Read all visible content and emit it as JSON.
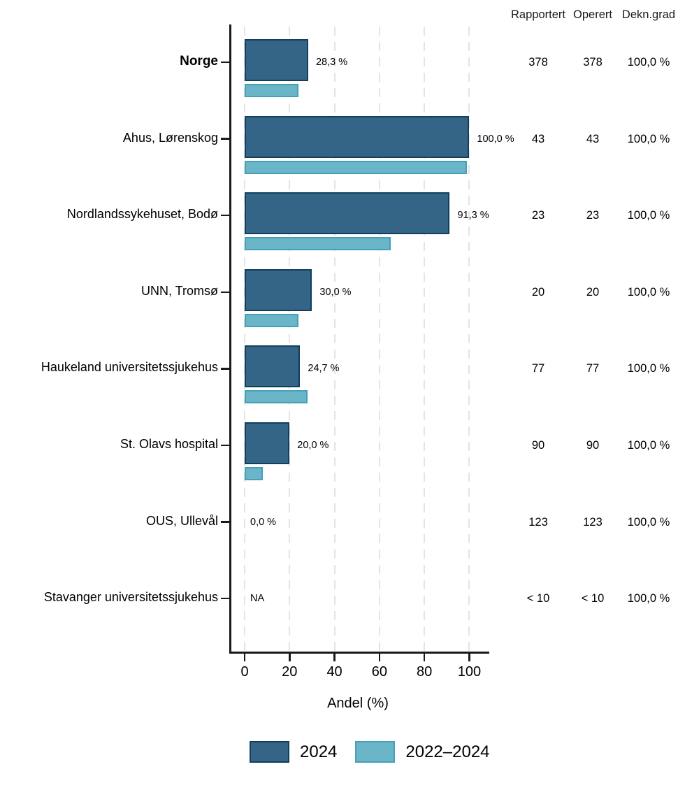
{
  "table": {
    "headers": [
      "Rapportert",
      "Operert",
      "Dekn.grad"
    ]
  },
  "axis": {
    "ticks": [
      0,
      20,
      40,
      60,
      80,
      100
    ],
    "xlabel": "Andel (%)"
  },
  "legend": {
    "items": [
      {
        "label": "2024",
        "fill": "#356586",
        "border": "#123f5e"
      },
      {
        "label": "2022–2024",
        "fill": "#6ab5c8",
        "border": "#45a1b8"
      }
    ]
  },
  "colors": {
    "bar_2024_fill": "#356586",
    "bar_2024_border": "#123f5e",
    "bar_2022_fill": "#6ab5c8",
    "bar_2022_border": "#45a1b8",
    "grid": "#e4e4e4",
    "axis": "#1a1a1a",
    "text": "#000000"
  },
  "rows": [
    {
      "label": "Norge",
      "bold": true,
      "pct_2024": 28.3,
      "pct_2022_2024": 24,
      "pct_label": "28,3 %",
      "rapportert": "378",
      "operert": "378",
      "dekngrad": "100,0 %"
    },
    {
      "label": "Ahus, Lørenskog",
      "bold": false,
      "pct_2024": 100.0,
      "pct_2022_2024": 99,
      "pct_label": "100,0 %",
      "rapportert": "43",
      "operert": "43",
      "dekngrad": "100,0 %"
    },
    {
      "label": "Nordlandssykehuset, Bodø",
      "bold": false,
      "pct_2024": 91.3,
      "pct_2022_2024": 65,
      "pct_label": "91,3 %",
      "rapportert": "23",
      "operert": "23",
      "dekngrad": "100,0 %"
    },
    {
      "label": "UNN, Tromsø",
      "bold": false,
      "pct_2024": 30.0,
      "pct_2022_2024": 24,
      "pct_label": "30,0 %",
      "rapportert": "20",
      "operert": "20",
      "dekngrad": "100,0 %"
    },
    {
      "label": "Haukeland universitetssjukehus",
      "bold": false,
      "pct_2024": 24.7,
      "pct_2022_2024": 28,
      "pct_label": "24,7 %",
      "rapportert": "77",
      "operert": "77",
      "dekngrad": "100,0 %"
    },
    {
      "label": "St. Olavs hospital",
      "bold": false,
      "pct_2024": 20.0,
      "pct_2022_2024": 8,
      "pct_label": "20,0 %",
      "rapportert": "90",
      "operert": "90",
      "dekngrad": "100,0 %"
    },
    {
      "label": "OUS, Ullevål",
      "bold": false,
      "pct_2024": 0.0,
      "pct_2022_2024": null,
      "pct_label": "0,0 %",
      "rapportert": "123",
      "operert": "123",
      "dekngrad": "100,0 %"
    },
    {
      "label": "Stavanger universitetssjukehus",
      "bold": false,
      "pct_2024": null,
      "pct_2022_2024": null,
      "pct_label": "NA",
      "rapportert": "< 10",
      "operert": "< 10",
      "dekngrad": "100,0 %"
    }
  ],
  "chart_data": {
    "type": "bar",
    "orientation": "horizontal",
    "title": "",
    "xlabel": "Andel (%)",
    "ylabel": "",
    "xlim": [
      0,
      100
    ],
    "xticks": [
      0,
      20,
      40,
      60,
      80,
      100
    ],
    "grid": "vertical-dashed",
    "legend_position": "bottom",
    "categories": [
      "Norge",
      "Ahus, Lørenskog",
      "Nordlandssykehuset, Bodø",
      "UNN, Tromsø",
      "Haukeland universitetssjukehus",
      "St. Olavs hospital",
      "OUS, Ullevål",
      "Stavanger universitetssjukehus"
    ],
    "series": [
      {
        "name": "2024",
        "color": "#356586",
        "values": [
          28.3,
          100.0,
          91.3,
          30.0,
          24.7,
          20.0,
          0.0,
          null
        ]
      },
      {
        "name": "2022–2024",
        "color": "#6ab5c8",
        "values": [
          24,
          99,
          65,
          24,
          28,
          8,
          null,
          null
        ]
      }
    ],
    "value_labels": [
      "28,3 %",
      "100,0 %",
      "91,3 %",
      "30,0 %",
      "24,7 %",
      "20,0 %",
      "0,0 %",
      "NA"
    ],
    "side_table": {
      "headers": [
        "Rapportert",
        "Operert",
        "Dekn.grad"
      ],
      "rows": [
        [
          "378",
          "378",
          "100,0 %"
        ],
        [
          "43",
          "43",
          "100,0 %"
        ],
        [
          "23",
          "23",
          "100,0 %"
        ],
        [
          "20",
          "20",
          "100,0 %"
        ],
        [
          "77",
          "77",
          "100,0 %"
        ],
        [
          "90",
          "90",
          "100,0 %"
        ],
        [
          "123",
          "123",
          "100,0 %"
        ],
        [
          "< 10",
          "< 10",
          "100,0 %"
        ]
      ]
    }
  }
}
